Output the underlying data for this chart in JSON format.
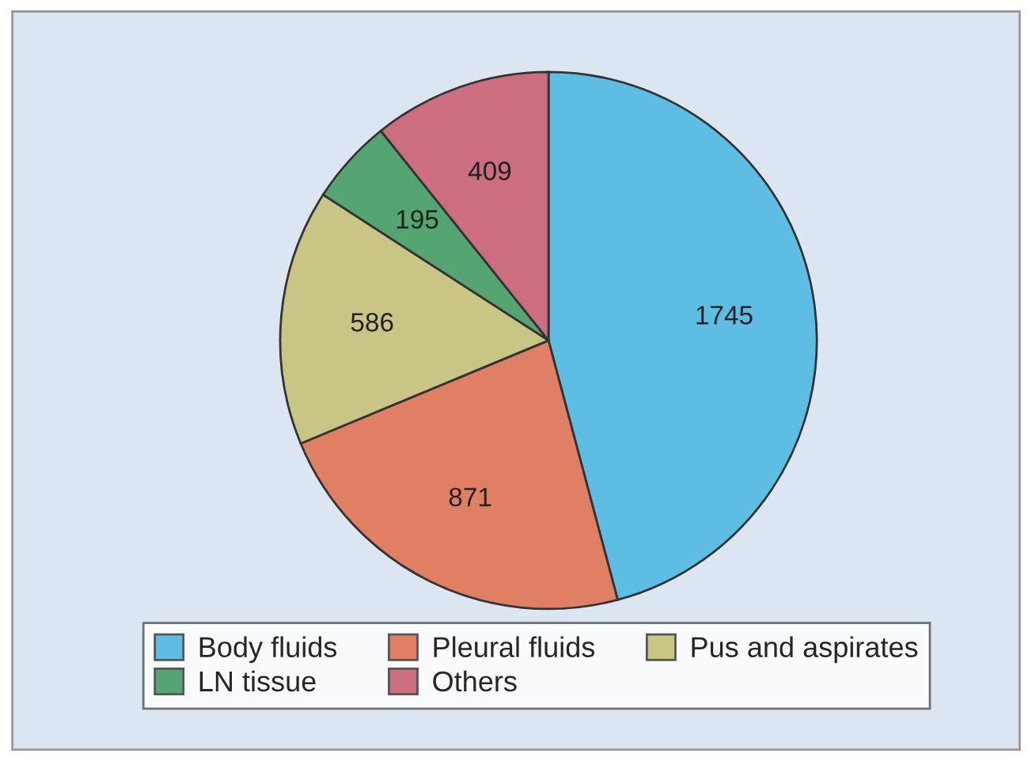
{
  "chart_data": {
    "type": "pie",
    "categories": [
      "Body fluids",
      "Pleural fluids",
      "Pus and aspirates",
      "LN tissue",
      "Others"
    ],
    "values": [
      1745,
      871,
      586,
      195,
      409
    ],
    "colors": [
      "#5ebde2",
      "#e07f63",
      "#c8c585",
      "#55a572",
      "#cc6e80"
    ],
    "data_labels": true,
    "legend": "bottom"
  }
}
